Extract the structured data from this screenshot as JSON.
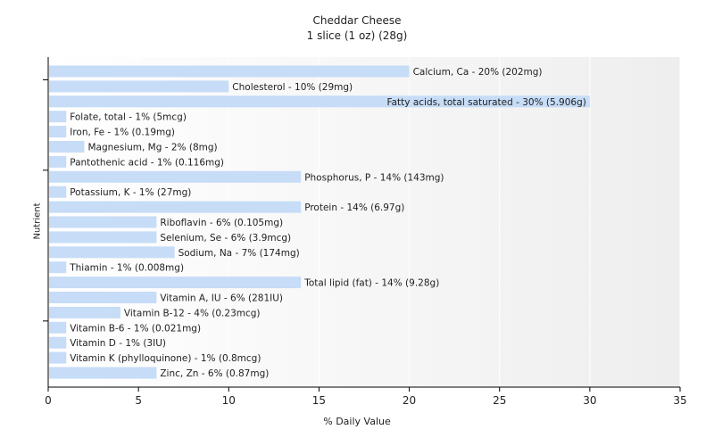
{
  "chart_data": {
    "type": "bar",
    "orientation": "horizontal",
    "title": "Cheddar Cheese",
    "subtitle": "1 slice (1 oz) (28g)",
    "xlabel": "% Daily Value",
    "ylabel": "Nutrient",
    "xlim": [
      0,
      35
    ],
    "xticks": [
      "0",
      "5",
      "10",
      "15",
      "20",
      "25",
      "30",
      "35"
    ],
    "bar_color": "#c6dcf7",
    "categories": [
      "Calcium, Ca",
      "Cholesterol",
      "Fatty acids, total saturated",
      "Folate, total",
      "Iron, Fe",
      "Magnesium, Mg",
      "Pantothenic acid",
      "Phosphorus, P",
      "Potassium, K",
      "Protein",
      "Riboflavin",
      "Selenium, Se",
      "Sodium, Na",
      "Thiamin",
      "Total lipid (fat)",
      "Vitamin A, IU",
      "Vitamin B-12",
      "Vitamin B-6",
      "Vitamin D",
      "Vitamin K (phylloquinone)",
      "Zinc, Zn"
    ],
    "values": [
      20,
      10,
      30,
      1,
      1,
      2,
      1,
      14,
      1,
      14,
      6,
      6,
      7,
      1,
      14,
      6,
      4,
      1,
      1,
      1,
      6
    ],
    "labels": [
      "Calcium, Ca - 20% (202mg)",
      "Cholesterol - 10% (29mg)",
      "Fatty acids, total saturated - 30% (5.906g)",
      "Folate, total - 1% (5mcg)",
      "Iron, Fe - 1% (0.19mg)",
      "Magnesium, Mg - 2% (8mg)",
      "Pantothenic acid - 1% (0.116mg)",
      "Phosphorus, P - 14% (143mg)",
      "Potassium, K - 1% (27mg)",
      "Protein - 14% (6.97g)",
      "Riboflavin - 6% (0.105mg)",
      "Selenium, Se - 6% (3.9mcg)",
      "Sodium, Na - 7% (174mg)",
      "Thiamin - 1% (0.008mg)",
      "Total lipid (fat) - 14% (9.28g)",
      "Vitamin A, IU - 6% (281IU)",
      "Vitamin B-12 - 4% (0.23mcg)",
      "Vitamin B-6 - 1% (0.021mg)",
      "Vitamin D - 1% (3IU)",
      "Vitamin K (phylloquinone) - 1% (0.8mcg)",
      "Zinc, Zn - 6% (0.87mg)"
    ]
  }
}
